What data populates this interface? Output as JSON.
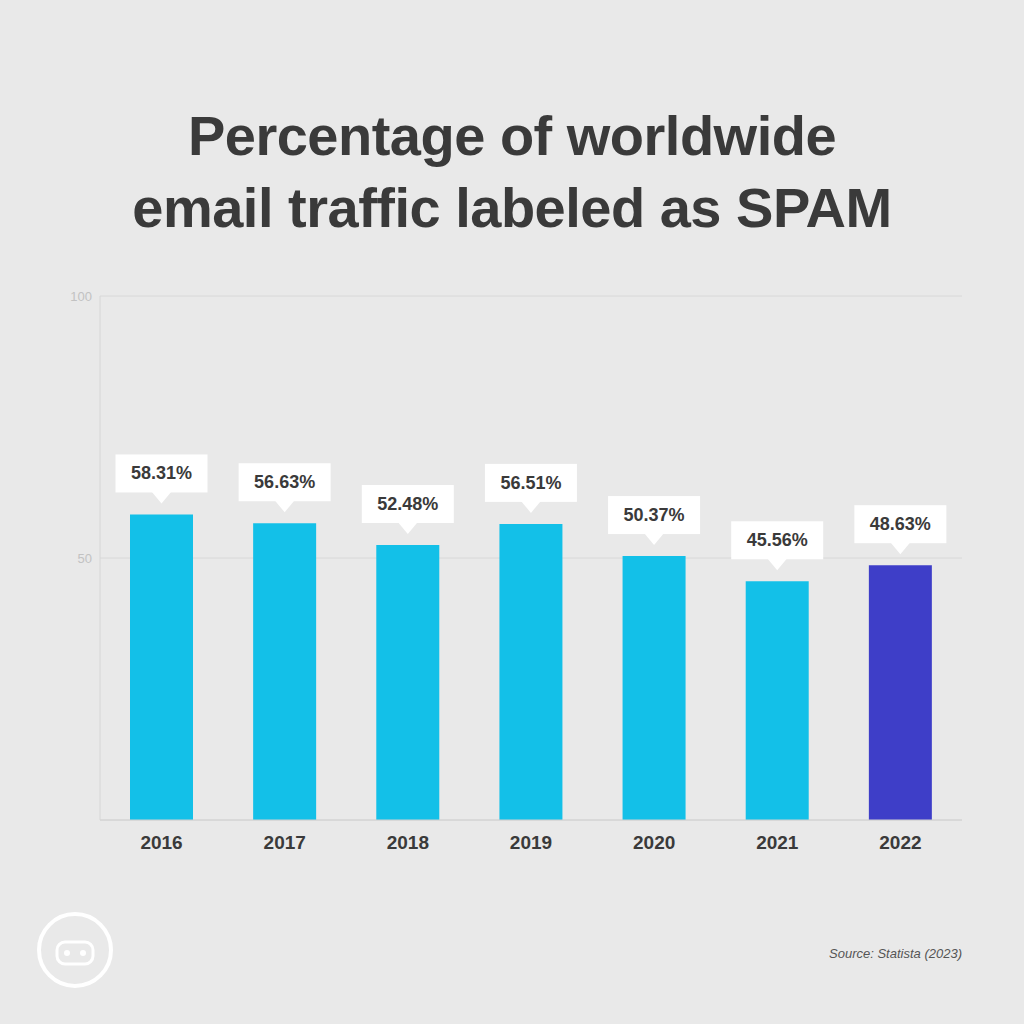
{
  "chart_data": {
    "type": "bar",
    "title": "Percentage of worldwide email traffic labeled as SPAM",
    "categories": [
      "2016",
      "2017",
      "2018",
      "2019",
      "2020",
      "2021",
      "2022"
    ],
    "values": [
      58.31,
      56.63,
      52.48,
      56.51,
      50.37,
      45.56,
      48.63
    ],
    "value_labels": [
      "58.31%",
      "56.63%",
      "52.48%",
      "56.51%",
      "50.37%",
      "45.56%",
      "48.63%"
    ],
    "colors": [
      "#13c0e8",
      "#13c0e8",
      "#13c0e8",
      "#13c0e8",
      "#13c0e8",
      "#13c0e8",
      "#3e3ec8"
    ],
    "ylim": [
      0,
      100
    ],
    "yticks": [
      50,
      100
    ],
    "grid": true,
    "data_labels": true,
    "annotations": [
      "Source: Statista (2023)"
    ]
  }
}
